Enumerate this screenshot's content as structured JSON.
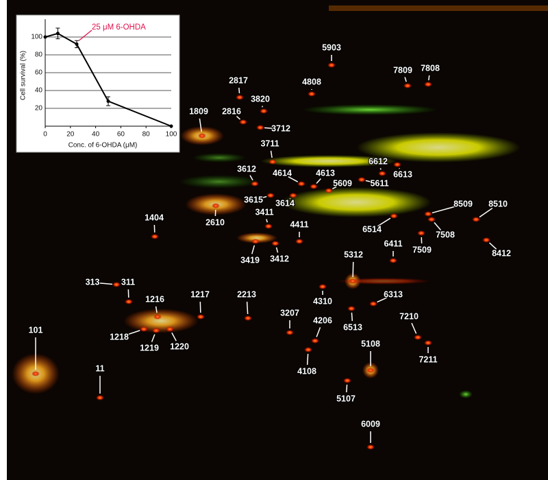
{
  "chart_data": {
    "type": "line",
    "xlabel": "Conc. of 6-OHDA (μM)",
    "ylabel": "Cell survival (%)",
    "x": [
      0,
      10,
      25,
      50,
      100
    ],
    "values": [
      100,
      104,
      92,
      28,
      0
    ],
    "errors": [
      null,
      6,
      4,
      5,
      null
    ],
    "color": "#000000",
    "xlim": [
      0,
      100
    ],
    "xticks": [
      0,
      20,
      40,
      60,
      80,
      100
    ],
    "ylim": [
      0,
      120
    ],
    "yticks": [
      20,
      40,
      60,
      80,
      100
    ],
    "grid": true,
    "annotation": {
      "text": "25 μM 6-OHDA",
      "color": "#e0114e"
    }
  },
  "gel": {
    "spot_labels": [
      "5903",
      "4808",
      "7809",
      "7808",
      "2817",
      "3820",
      "2816",
      "3712",
      "1809",
      "3711",
      "3612",
      "4614",
      "4613",
      "6612",
      "6613",
      "5609",
      "5611",
      "3615",
      "3614",
      "3411",
      "2610",
      "1404",
      "4411",
      "6514",
      "8509",
      "8510",
      "7508",
      "7509",
      "6411",
      "8412",
      "3419",
      "3412",
      "5312",
      "313",
      "311",
      "1216",
      "1217",
      "2213",
      "4310",
      "6313",
      "3207",
      "4206",
      "6513",
      "7210",
      "1218",
      "1219",
      "1220",
      "101",
      "5108",
      "7211",
      "4108",
      "11",
      "5107",
      "6009"
    ]
  }
}
